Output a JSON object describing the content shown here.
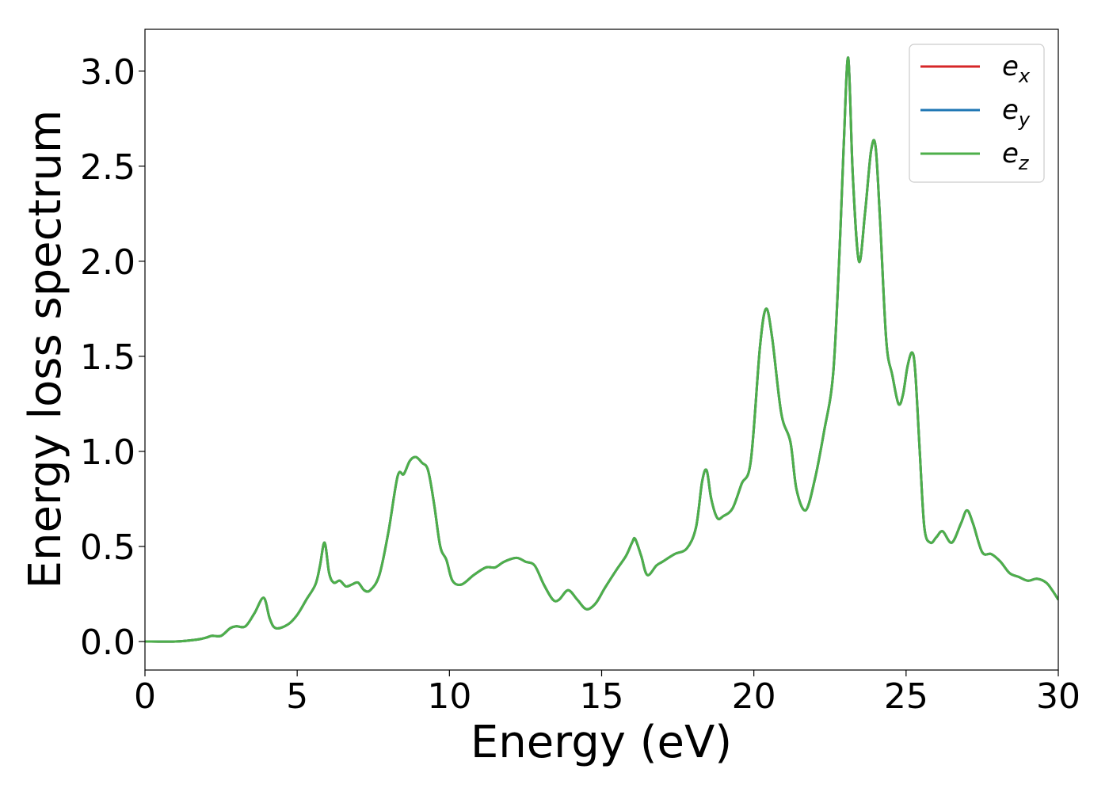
{
  "chart_data": {
    "type": "line",
    "title": "",
    "xlabel": "Energy (eV)",
    "ylabel": "Energy loss spectrum",
    "xlim": [
      0,
      30
    ],
    "ylim": [
      -0.15,
      3.22
    ],
    "xticks": [
      0,
      5,
      10,
      15,
      20,
      25,
      30
    ],
    "xtick_labels": [
      "0",
      "5",
      "10",
      "15",
      "20",
      "25",
      "30"
    ],
    "yticks": [
      0.0,
      0.5,
      1.0,
      1.5,
      2.0,
      2.5,
      3.0
    ],
    "ytick_labels": [
      "0.0",
      "0.5",
      "1.0",
      "1.5",
      "2.0",
      "2.5",
      "3.0"
    ],
    "grid": false,
    "legend_position": "top-right",
    "series_colors": [
      "#d62728",
      "#1f77b4",
      "#4daf4a"
    ],
    "series": [
      {
        "name": "e_x",
        "legend_base": "e",
        "legend_sub": "x",
        "color": "#d62728"
      },
      {
        "name": "e_y",
        "legend_base": "e",
        "legend_sub": "y",
        "color": "#1f77b4"
      },
      {
        "name": "e_z",
        "legend_base": "e",
        "legend_sub": "z",
        "color": "#4daf4a"
      }
    ],
    "x": [
      0,
      1.0,
      1.7,
      2.0,
      2.2,
      2.5,
      2.8,
      3.0,
      3.3,
      3.6,
      3.9,
      4.1,
      4.3,
      4.7,
      5.0,
      5.3,
      5.6,
      5.75,
      5.9,
      6.05,
      6.2,
      6.4,
      6.6,
      6.8,
      7.0,
      7.2,
      7.4,
      7.7,
      8.0,
      8.3,
      8.5,
      8.7,
      8.9,
      9.1,
      9.3,
      9.5,
      9.7,
      9.9,
      10.1,
      10.4,
      10.8,
      11.2,
      11.5,
      11.8,
      12.2,
      12.5,
      12.8,
      13.1,
      13.4,
      13.6,
      13.9,
      14.2,
      14.5,
      14.8,
      15.1,
      15.5,
      15.8,
      16.0,
      16.1,
      16.3,
      16.5,
      16.8,
      17.0,
      17.4,
      17.8,
      18.1,
      18.3,
      18.45,
      18.6,
      18.8,
      19.0,
      19.3,
      19.6,
      19.9,
      20.2,
      20.4,
      20.6,
      20.9,
      21.2,
      21.4,
      21.7,
      22.0,
      22.3,
      22.6,
      22.8,
      22.95,
      23.1,
      23.25,
      23.45,
      23.65,
      23.85,
      24.0,
      24.15,
      24.35,
      24.55,
      24.75,
      24.9,
      25.05,
      25.2,
      25.3,
      25.45,
      25.6,
      25.8,
      26.0,
      26.2,
      26.5,
      26.8,
      27.0,
      27.2,
      27.5,
      27.8,
      28.1,
      28.4,
      28.7,
      29.0,
      29.3,
      29.6,
      29.8,
      30.0
    ],
    "y": [
      0.0,
      0.0,
      0.01,
      0.02,
      0.03,
      0.03,
      0.07,
      0.08,
      0.08,
      0.15,
      0.23,
      0.12,
      0.07,
      0.09,
      0.14,
      0.22,
      0.3,
      0.4,
      0.52,
      0.36,
      0.31,
      0.32,
      0.29,
      0.3,
      0.31,
      0.27,
      0.27,
      0.35,
      0.58,
      0.87,
      0.88,
      0.95,
      0.97,
      0.94,
      0.9,
      0.72,
      0.5,
      0.43,
      0.32,
      0.3,
      0.35,
      0.39,
      0.39,
      0.42,
      0.44,
      0.42,
      0.4,
      0.3,
      0.22,
      0.22,
      0.27,
      0.22,
      0.17,
      0.2,
      0.28,
      0.38,
      0.45,
      0.52,
      0.54,
      0.45,
      0.35,
      0.4,
      0.42,
      0.46,
      0.49,
      0.6,
      0.84,
      0.9,
      0.75,
      0.65,
      0.66,
      0.7,
      0.83,
      0.95,
      1.55,
      1.75,
      1.6,
      1.2,
      1.05,
      0.8,
      0.69,
      0.85,
      1.1,
      1.4,
      2.0,
      2.6,
      3.07,
      2.45,
      2.0,
      2.25,
      2.58,
      2.6,
      2.2,
      1.58,
      1.4,
      1.25,
      1.3,
      1.45,
      1.52,
      1.42,
      1.0,
      0.6,
      0.52,
      0.55,
      0.58,
      0.52,
      0.62,
      0.69,
      0.62,
      0.47,
      0.46,
      0.42,
      0.36,
      0.34,
      0.32,
      0.33,
      0.31,
      0.27,
      0.22
    ]
  }
}
